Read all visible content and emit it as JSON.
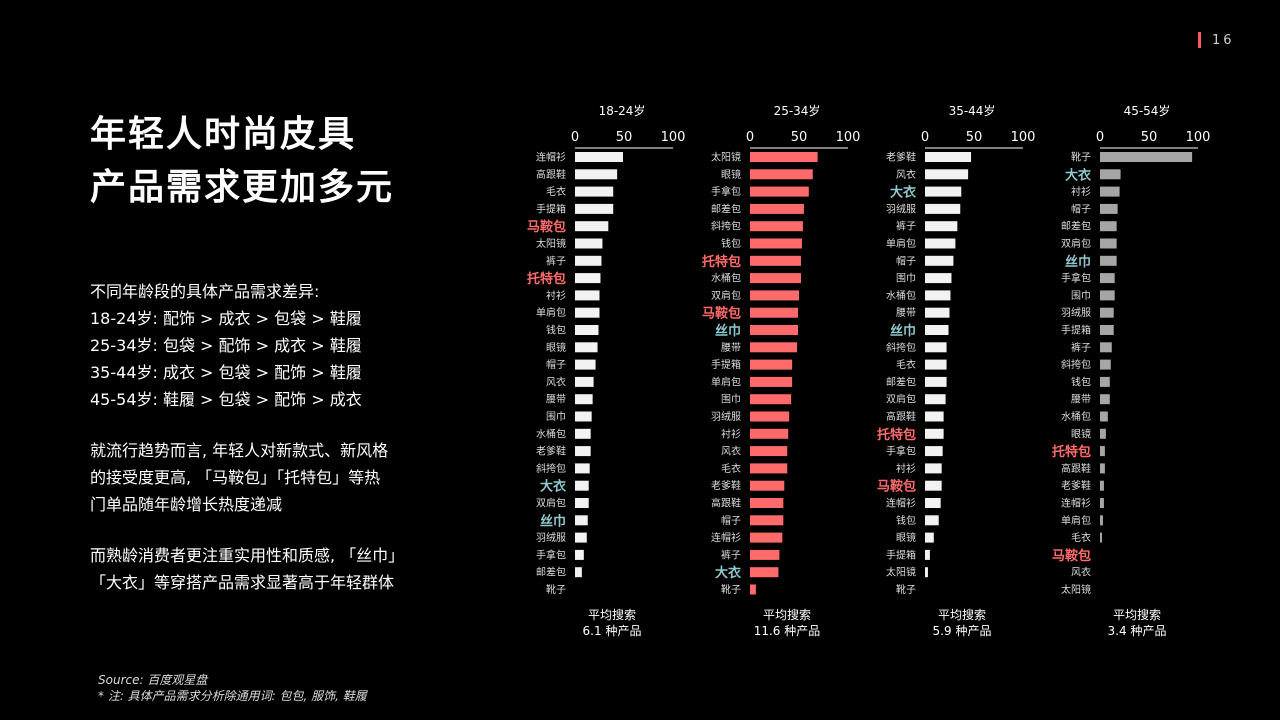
{
  "page": {
    "number": "16"
  },
  "headline": {
    "line1": "年轻人时尚皮具",
    "line2": "产品需求更加多元"
  },
  "summary": {
    "intro": "不同年龄段的具体产品需求差异:",
    "rank_18_24": "18-24岁: 配饰 > 成衣 > 包袋 > 鞋履",
    "rank_25_34": "25-34岁: 包袋 > 配饰 > 成衣 > 鞋履",
    "rank_35_44": "35-44岁: 成衣 > 包袋 > 配饰 > 鞋履",
    "rank_45_54": "45-54岁: 鞋履 > 包袋 > 配饰 > 成衣",
    "trend_line1": "就流行趋势而言, 年轻人对新款式、新风格",
    "trend_line2": "的接受度更高, 「马鞍包」「托特包」等热",
    "trend_line3": "门单品随年龄增长热度递减",
    "mature_line1": "而熟龄消费者更注重实用性和质感, 「丝巾」",
    "mature_line2": "「大衣」等穿搭产品需求显著高于年轻群体"
  },
  "source": {
    "line1": "Source: 百度观星盘",
    "line2": "* 注: 具体产品需求分析除通用词: 包包, 服饰, 鞋履"
  },
  "colors": {
    "bar_default": "#f2f2f2",
    "bar_25_34": "#ff6b6b",
    "bar_45_54": "#a6a6a6",
    "highlight_red": "#ff6b6b",
    "highlight_teal": "#8fc9cf",
    "label_default": "#dcdcdc"
  },
  "chart_data": [
    {
      "type": "bar",
      "orientation": "horizontal",
      "title": "18-24岁",
      "xlim": [
        0,
        100
      ],
      "xticks": [
        0,
        50,
        100
      ],
      "footer_label": "平均搜索",
      "footer_value": "6.1 种产品",
      "categories": [
        "连帽衫",
        "高跟鞋",
        "毛衣",
        "手提箱",
        "马鞍包",
        "太阳镜",
        "裤子",
        "托特包",
        "衬衫",
        "单肩包",
        "钱包",
        "眼镜",
        "帽子",
        "风衣",
        "腰带",
        "围巾",
        "水桶包",
        "老爹鞋",
        "斜挎包",
        "大衣",
        "双肩包",
        "丝巾",
        "羽绒服",
        "手拿包",
        "邮差包",
        "靴子"
      ],
      "values": [
        49,
        43,
        39,
        39,
        34,
        28,
        27,
        26,
        25,
        25,
        24,
        23,
        21,
        19,
        18,
        17,
        16,
        16,
        15,
        14,
        14,
        13,
        12,
        9,
        7,
        0
      ],
      "highlight": {
        "马鞍包": "red",
        "托特包": "red",
        "大衣": "teal",
        "丝巾": "teal"
      }
    },
    {
      "type": "bar",
      "orientation": "horizontal",
      "title": "25-34岁",
      "xlim": [
        0,
        100
      ],
      "xticks": [
        0,
        50,
        100
      ],
      "footer_label": "平均搜索",
      "footer_value": "11.6 种产品",
      "categories": [
        "太阳镜",
        "眼镜",
        "手拿包",
        "邮差包",
        "斜挎包",
        "钱包",
        "托特包",
        "水桶包",
        "双肩包",
        "马鞍包",
        "丝巾",
        "腰带",
        "手提箱",
        "单肩包",
        "围巾",
        "羽绒服",
        "衬衫",
        "风衣",
        "毛衣",
        "老爹鞋",
        "高跟鞋",
        "帽子",
        "连帽衫",
        "裤子",
        "大衣",
        "靴子"
      ],
      "values": [
        69,
        64,
        60,
        55,
        54,
        53,
        52,
        52,
        50,
        49,
        49,
        48,
        43,
        43,
        42,
        40,
        39,
        38,
        38,
        35,
        34,
        34,
        33,
        30,
        29,
        6
      ],
      "highlight": {
        "托特包": "red",
        "马鞍包": "red",
        "丝巾": "teal",
        "大衣": "teal"
      }
    },
    {
      "type": "bar",
      "orientation": "horizontal",
      "title": "35-44岁",
      "xlim": [
        0,
        100
      ],
      "xticks": [
        0,
        50,
        100
      ],
      "footer_label": "平均搜索",
      "footer_value": "5.9 种产品",
      "categories": [
        "老爹鞋",
        "风衣",
        "大衣",
        "羽绒服",
        "裤子",
        "单肩包",
        "帽子",
        "围巾",
        "水桶包",
        "腰带",
        "丝巾",
        "斜挎包",
        "毛衣",
        "邮差包",
        "双肩包",
        "高跟鞋",
        "托特包",
        "手拿包",
        "衬衫",
        "马鞍包",
        "连帽衫",
        "钱包",
        "眼镜",
        "手提箱",
        "太阳镜",
        "靴子"
      ],
      "values": [
        47,
        44,
        37,
        36,
        33,
        31,
        29,
        27,
        26,
        25,
        24,
        22,
        22,
        22,
        21,
        19,
        19,
        18,
        17,
        17,
        16,
        14,
        9,
        5,
        3,
        0
      ],
      "highlight": {
        "大衣": "teal",
        "丝巾": "teal",
        "托特包": "red",
        "马鞍包": "red"
      }
    },
    {
      "type": "bar",
      "orientation": "horizontal",
      "title": "45-54岁",
      "xlim": [
        0,
        100
      ],
      "xticks": [
        0,
        50,
        100
      ],
      "footer_label": "平均搜索",
      "footer_value": "3.4 种产品",
      "categories": [
        "靴子",
        "大衣",
        "衬衫",
        "帽子",
        "邮差包",
        "双肩包",
        "丝巾",
        "手拿包",
        "围巾",
        "羽绒服",
        "手提箱",
        "裤子",
        "斜挎包",
        "钱包",
        "腰带",
        "水桶包",
        "眼镜",
        "托特包",
        "高跟鞋",
        "老爹鞋",
        "连帽衫",
        "单肩包",
        "毛衣",
        "马鞍包",
        "风衣",
        "太阳镜"
      ],
      "values": [
        94,
        21,
        20,
        18,
        17,
        17,
        17,
        15,
        15,
        14,
        14,
        12,
        11,
        10,
        10,
        8,
        6,
        5,
        5,
        4,
        4,
        3,
        2,
        0,
        0,
        0
      ],
      "highlight": {
        "大衣": "teal",
        "丝巾": "teal",
        "托特包": "red",
        "马鞍包": "red"
      }
    }
  ]
}
